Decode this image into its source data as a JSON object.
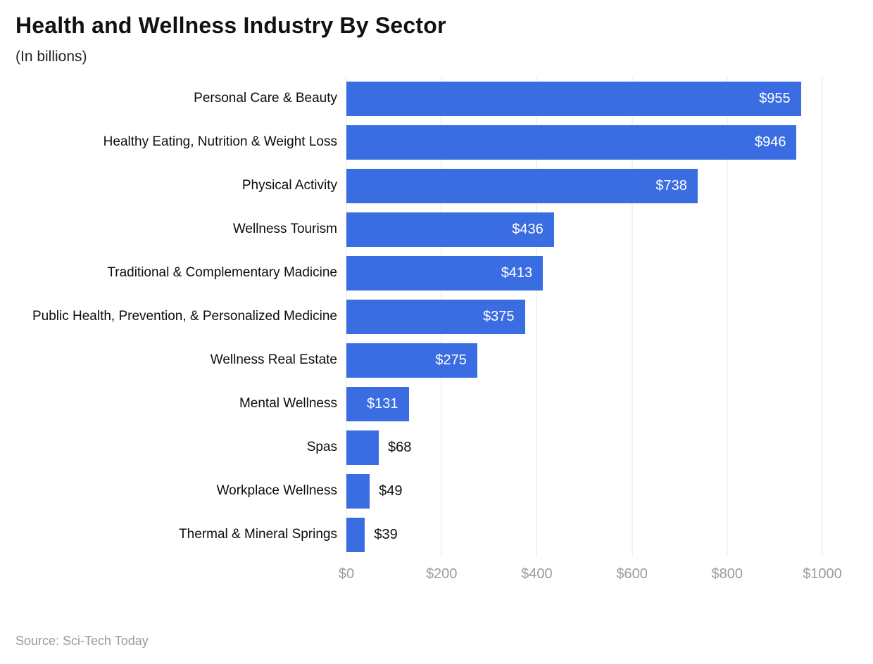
{
  "header": {
    "title": "Health and Wellness Industry By Sector",
    "subtitle": "(In billions)"
  },
  "chart_data": {
    "type": "bar",
    "orientation": "horizontal",
    "title": "Health and Wellness Industry By Sector",
    "subtitle": "(In billions)",
    "categories": [
      "Personal Care & Beauty",
      "Healthy Eating, Nutrition & Weight Loss",
      "Physical Activity",
      "Wellness Tourism",
      "Traditional & Complementary Madicine",
      "Public Health, Prevention, & Personalized Medicine",
      "Wellness Real Estate",
      "Mental Wellness",
      "Spas",
      "Workplace Wellness",
      "Thermal & Mineral Springs"
    ],
    "values": [
      955,
      946,
      738,
      436,
      413,
      375,
      275,
      131,
      68,
      49,
      39
    ],
    "value_labels": [
      "$955",
      "$946",
      "$738",
      "$436",
      "$413",
      "$375",
      "$275",
      "$131",
      "$68",
      "$49",
      "$39"
    ],
    "xlabel": "",
    "ylabel": "",
    "xlim": [
      0,
      1000
    ],
    "xticks": [
      0,
      200,
      400,
      600,
      800,
      1000
    ],
    "xtick_labels": [
      "$0",
      "$200",
      "$400",
      "$600",
      "$800",
      "$1000"
    ],
    "grid": true,
    "legend": "none",
    "bar_color": "#3b6de2",
    "inside_label_min": 100,
    "label_color_inside": "#ffffff",
    "label_color_outside": "#111111",
    "gridline_color": "#e7e7e7",
    "tick_color": "#9b9b9b"
  },
  "footer": {
    "source": "Source: Sci-Tech Today"
  }
}
